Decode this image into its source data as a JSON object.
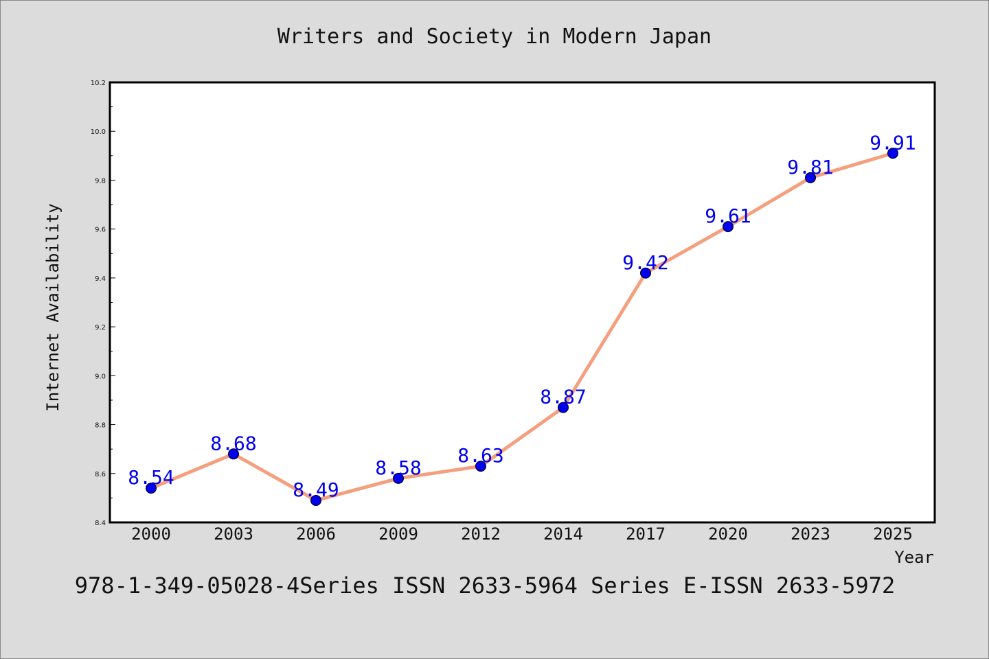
{
  "chart_data": {
    "type": "line",
    "title": "Writers and Society in Modern Japan",
    "xlabel": "Year",
    "ylabel": "Internet Availability",
    "categories": [
      "2000",
      "2003",
      "2006",
      "2009",
      "2012",
      "2014",
      "2017",
      "2020",
      "2023",
      "2025"
    ],
    "series": [
      {
        "values": [
          8.54,
          8.68,
          8.49,
          8.58,
          8.63,
          8.87,
          9.42,
          9.61,
          9.81,
          9.91
        ]
      }
    ],
    "data_labels": [
      "8.54",
      "8.68",
      "8.49",
      "8.58",
      "8.63",
      "8.87",
      "9.42",
      "9.61",
      "9.81",
      "9.91"
    ],
    "ylim": [
      8.4,
      10.2
    ],
    "yticks": [
      "8.4",
      "8.6",
      "8.8",
      "9.0",
      "9.2",
      "9.4",
      "9.6",
      "9.8",
      "10.0",
      "10.2"
    ],
    "grid": false,
    "legend": "none",
    "footer": "978-1-349-05028-4Series ISSN 2633-5964 Series E-ISSN 2633-5972",
    "colors": {
      "background": "#dcdcdc",
      "plot_background": "#ffffff",
      "line": "#f4a07e",
      "marker": "#0000ee",
      "data_label": "#0000ee",
      "text": "#111111"
    }
  }
}
